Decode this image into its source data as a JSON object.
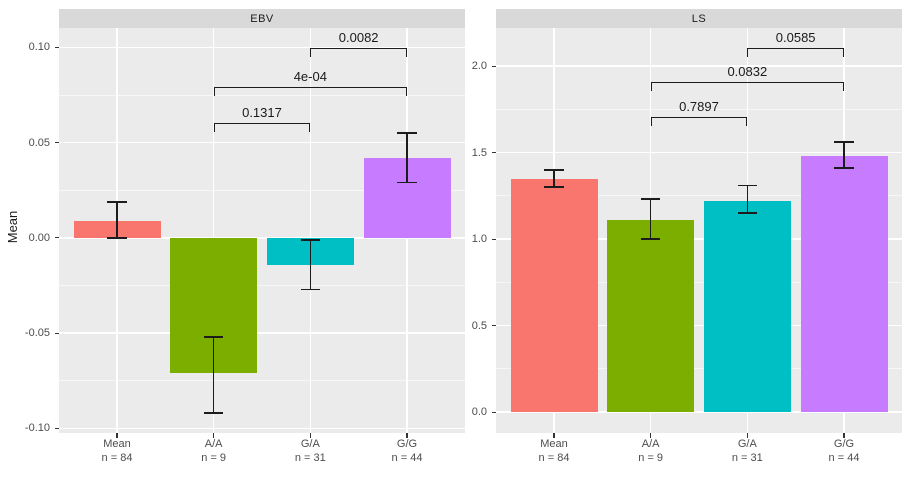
{
  "figure": {
    "ylabel": "Mean",
    "theme": {
      "background": "#FFFFFF",
      "panel_background": "#EBEBEB",
      "strip_background": "#D9D9D9",
      "grid_major_color": "#FFFFFF",
      "grid_minor_color": "rgba(255,255,255,0.6)",
      "axis_text_color": "#4D4D4D",
      "strip_text_color": "#1A1A1A",
      "annotation_color": "#1C1C1C",
      "tick_mark_color": "#333333"
    }
  },
  "chart_data": [
    {
      "type": "bar",
      "title": "EBV",
      "xlabel": "",
      "ylabel": "Mean",
      "categories": [
        "Mean",
        "A/A",
        "G/A",
        "G/G"
      ],
      "category_counts": [
        "n = 84",
        "n = 9",
        "n = 31",
        "n = 44"
      ],
      "n": [
        84,
        9,
        31,
        44
      ],
      "values": [
        0.009,
        -0.071,
        -0.014,
        0.042
      ],
      "error_low": [
        0.0,
        -0.092,
        -0.027,
        0.029
      ],
      "error_high": [
        0.019,
        -0.052,
        -0.001,
        0.055
      ],
      "colors": [
        "#F8766D",
        "#7CAE00",
        "#00BFC4",
        "#C77CFF"
      ],
      "ylim": [
        -0.1024,
        0.1102
      ],
      "yticks": [
        -0.1,
        -0.05,
        0.0,
        0.05,
        0.1
      ],
      "ytick_labels": [
        "-0.10",
        "-0.05",
        "0.00",
        "0.05",
        "0.10"
      ],
      "yticks_minor": [
        -0.075,
        -0.025,
        0.025,
        0.075
      ],
      "grid": true,
      "legend": "none",
      "comparisons": [
        {
          "group1": "A/A",
          "group2": "G/A",
          "p_label": "0.1317",
          "y_position": 0.0604
        },
        {
          "group1": "A/A",
          "group2": "G/G",
          "p_label": "4e-04",
          "y_position": 0.0793
        },
        {
          "group1": "G/A",
          "group2": "G/G",
          "p_label": "0.0082",
          "y_position": 0.0997
        }
      ]
    },
    {
      "type": "bar",
      "title": "LS",
      "xlabel": "",
      "ylabel": "Mean",
      "categories": [
        "Mean",
        "A/A",
        "G/A",
        "G/G"
      ],
      "category_counts": [
        "n = 84",
        "n = 9",
        "n = 31",
        "n = 44"
      ],
      "n": [
        84,
        9,
        31,
        44
      ],
      "values": [
        1.35,
        1.11,
        1.22,
        1.48
      ],
      "error_low": [
        1.3,
        1.0,
        1.15,
        1.41
      ],
      "error_high": [
        1.4,
        1.23,
        1.31,
        1.56
      ],
      "colors": [
        "#F8766D",
        "#7CAE00",
        "#00BFC4",
        "#C77CFF"
      ],
      "ylim": [
        -0.121,
        2.22
      ],
      "yticks": [
        0.0,
        0.5,
        1.0,
        1.5,
        2.0
      ],
      "ytick_labels": [
        "0.0",
        "0.5",
        "1.0",
        "1.5",
        "2.0"
      ],
      "yticks_minor": [
        0.25,
        0.75,
        1.25,
        1.75
      ],
      "grid": true,
      "legend": "none",
      "comparisons": [
        {
          "group1": "A/A",
          "group2": "G/A",
          "p_label": "0.7897",
          "y_position": 1.705
        },
        {
          "group1": "A/A",
          "group2": "G/G",
          "p_label": "0.0832",
          "y_position": 1.908
        },
        {
          "group1": "G/A",
          "group2": "G/G",
          "p_label": "0.0585",
          "y_position": 2.104
        }
      ]
    }
  ]
}
